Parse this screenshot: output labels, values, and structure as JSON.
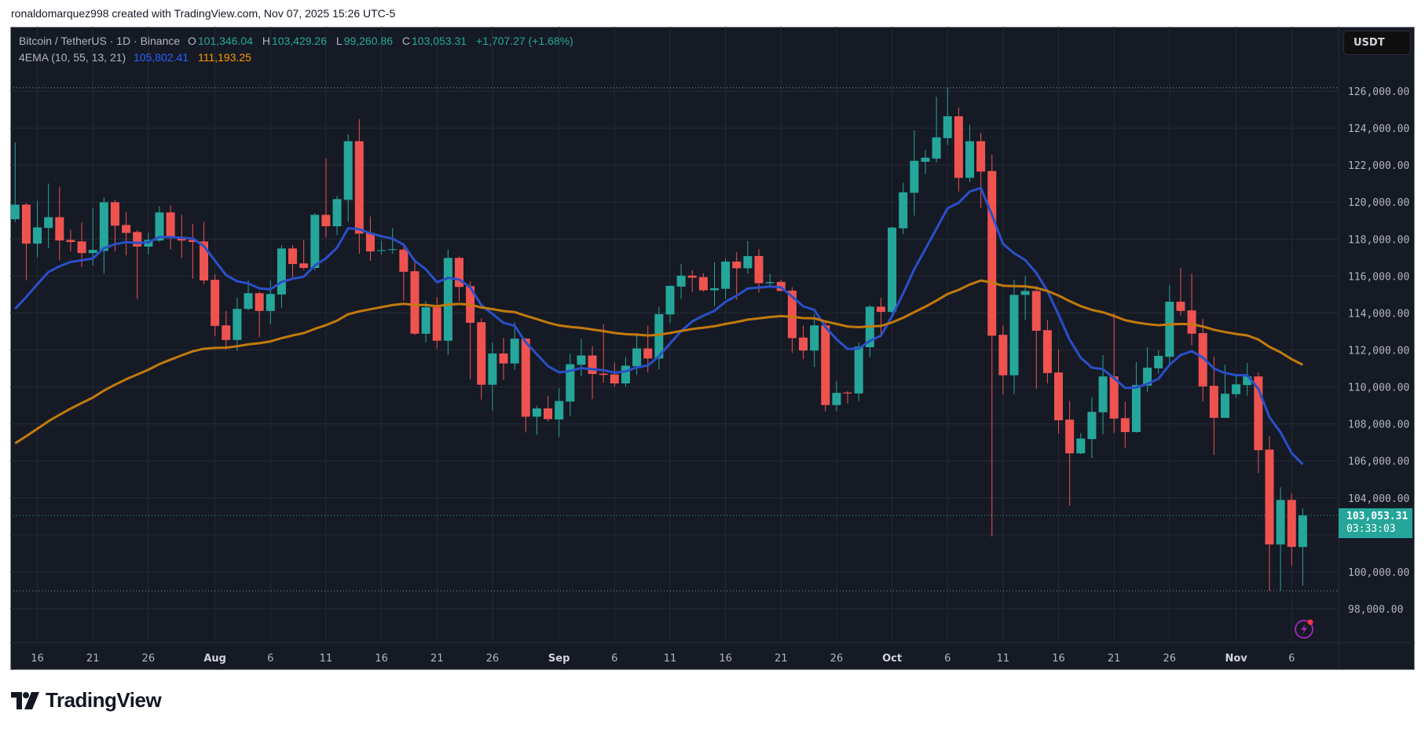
{
  "credit": "ronaldomarquez998 created with TradingView.com, Nov 07, 2025 15:26 UTC-5",
  "legend": {
    "symbol": "Bitcoin / TetherUS · 1D · Binance",
    "o_label": "O",
    "o_value": "101,346.04",
    "h_label": "H",
    "h_value": "103,429.26",
    "l_label": "L",
    "l_value": "99,260.86",
    "c_label": "C",
    "c_value": "103,053.31",
    "change": "+1,707.27 (+1.68%)",
    "indicator_name": "4EMA (10, 55, 13, 21)",
    "ema_fast_value": "105,802.41",
    "ema_slow_value": "111,193.25"
  },
  "currency_button": "USDT",
  "price_tag": {
    "price": "103,053.31",
    "countdown": "03:33:03"
  },
  "logo_text": "TradingView",
  "colors": {
    "background": "#161a25",
    "up": "#26a69a",
    "down": "#ef5350",
    "ema_fast": "#2a4fc9",
    "ema_slow": "#c27a0c",
    "grid": "#252a36",
    "axis_text": "#b2b5be"
  },
  "chart_data": {
    "type": "candlestick",
    "title": "Bitcoin / TetherUS · 1D · Binance",
    "ylim": [
      96500,
      127000
    ],
    "grid": true,
    "y_ticks": [
      "98,000.00",
      "100,000.00",
      "104,000.00",
      "106,000.00",
      "108,000.00",
      "110,000.00",
      "112,000.00",
      "114,000.00",
      "116,000.00",
      "118,000.00",
      "120,000.00",
      "122,000.00",
      "124,000.00",
      "126,000.00"
    ],
    "y_tick_values": [
      98000,
      100000,
      104000,
      106000,
      108000,
      110000,
      112000,
      114000,
      116000,
      118000,
      120000,
      122000,
      124000,
      126000
    ],
    "grid_values": [
      98000,
      100000,
      102000,
      104000,
      106000,
      108000,
      110000,
      112000,
      114000,
      116000,
      118000,
      120000,
      122000,
      124000,
      126000
    ],
    "x_ticks": [
      {
        "date": "2025-07-16",
        "label": "16",
        "month": false
      },
      {
        "date": "2025-07-21",
        "label": "21",
        "month": false
      },
      {
        "date": "2025-07-26",
        "label": "26",
        "month": false
      },
      {
        "date": "2025-08-01",
        "label": "Aug",
        "month": true
      },
      {
        "date": "2025-08-06",
        "label": "6",
        "month": false
      },
      {
        "date": "2025-08-11",
        "label": "11",
        "month": false
      },
      {
        "date": "2025-08-16",
        "label": "16",
        "month": false
      },
      {
        "date": "2025-08-21",
        "label": "21",
        "month": false
      },
      {
        "date": "2025-08-26",
        "label": "26",
        "month": false
      },
      {
        "date": "2025-09-01",
        "label": "Sep",
        "month": true
      },
      {
        "date": "2025-09-06",
        "label": "6",
        "month": false
      },
      {
        "date": "2025-09-11",
        "label": "11",
        "month": false
      },
      {
        "date": "2025-09-16",
        "label": "16",
        "month": false
      },
      {
        "date": "2025-09-21",
        "label": "21",
        "month": false
      },
      {
        "date": "2025-09-26",
        "label": "26",
        "month": false
      },
      {
        "date": "2025-10-01",
        "label": "Oct",
        "month": true
      },
      {
        "date": "2025-10-06",
        "label": "6",
        "month": false
      },
      {
        "date": "2025-10-11",
        "label": "11",
        "month": false
      },
      {
        "date": "2025-10-16",
        "label": "16",
        "month": false
      },
      {
        "date": "2025-10-21",
        "label": "21",
        "month": false
      },
      {
        "date": "2025-10-26",
        "label": "26",
        "month": false
      },
      {
        "date": "2025-11-01",
        "label": "Nov",
        "month": true
      },
      {
        "date": "2025-11-06",
        "label": "6",
        "month": false
      }
    ],
    "last_price": 103053.31,
    "columns": [
      "date",
      "open",
      "high",
      "low",
      "close"
    ],
    "candles": [
      [
        "2025-07-14",
        119070,
        123220,
        118930,
        119860
      ],
      [
        "2025-07-15",
        119860,
        119940,
        115760,
        117750
      ],
      [
        "2025-07-16",
        117750,
        120070,
        117030,
        118630
      ],
      [
        "2025-07-17",
        118600,
        121000,
        117500,
        119180
      ],
      [
        "2025-07-18",
        119180,
        120830,
        116860,
        117920
      ],
      [
        "2025-07-19",
        117950,
        118500,
        117330,
        117840
      ],
      [
        "2025-07-20",
        117870,
        118880,
        116480,
        117240
      ],
      [
        "2025-07-21",
        117240,
        119690,
        116570,
        117410
      ],
      [
        "2025-07-22",
        117360,
        120240,
        116130,
        119990
      ],
      [
        "2025-07-23",
        119990,
        120120,
        117330,
        118720
      ],
      [
        "2025-07-24",
        118760,
        119480,
        117120,
        118330
      ],
      [
        "2025-07-25",
        118380,
        118480,
        114750,
        117590
      ],
      [
        "2025-07-26",
        117590,
        118330,
        117160,
        117950
      ],
      [
        "2025-07-27",
        117920,
        119770,
        117840,
        119440
      ],
      [
        "2025-07-28",
        119440,
        119820,
        117440,
        118050
      ],
      [
        "2025-07-29",
        118080,
        119310,
        116980,
        117920
      ],
      [
        "2025-07-30",
        117950,
        118800,
        115850,
        117840
      ],
      [
        "2025-07-31",
        117870,
        118930,
        115550,
        115760
      ],
      [
        "2025-08-01",
        115790,
        116090,
        112750,
        113300
      ],
      [
        "2025-08-02",
        113330,
        114110,
        112030,
        112540
      ],
      [
        "2025-08-03",
        112540,
        114830,
        111950,
        114220
      ],
      [
        "2025-08-04",
        114220,
        115760,
        114150,
        115070
      ],
      [
        "2025-08-05",
        115070,
        115150,
        112710,
        114110
      ],
      [
        "2025-08-06",
        114110,
        115760,
        113390,
        115030
      ],
      [
        "2025-08-07",
        115000,
        117660,
        114290,
        117490
      ],
      [
        "2025-08-08",
        117490,
        117660,
        115920,
        116650
      ],
      [
        "2025-08-09",
        116680,
        117950,
        116340,
        116440
      ],
      [
        "2025-08-10",
        116440,
        119400,
        116300,
        119310
      ],
      [
        "2025-08-11",
        119310,
        122360,
        118090,
        118690
      ],
      [
        "2025-08-12",
        118690,
        120330,
        118220,
        120160
      ],
      [
        "2025-08-13",
        120120,
        123670,
        118940,
        123290
      ],
      [
        "2025-08-14",
        123290,
        124480,
        117200,
        118290
      ],
      [
        "2025-08-15",
        118330,
        119220,
        116820,
        117330
      ],
      [
        "2025-08-16",
        117370,
        117910,
        117160,
        117400
      ],
      [
        "2025-08-17",
        117410,
        118590,
        117200,
        117450
      ],
      [
        "2025-08-18",
        117430,
        117570,
        114660,
        116230
      ],
      [
        "2025-08-19",
        116260,
        116750,
        112800,
        112880
      ],
      [
        "2025-08-20",
        112880,
        114650,
        112410,
        114310
      ],
      [
        "2025-08-21",
        114310,
        114860,
        112070,
        112500
      ],
      [
        "2025-08-22",
        112500,
        117440,
        111730,
        116980
      ],
      [
        "2025-08-23",
        116980,
        117060,
        114630,
        115410
      ],
      [
        "2025-08-24",
        115450,
        115710,
        110420,
        113470
      ],
      [
        "2025-08-25",
        113500,
        113710,
        109320,
        110120
      ],
      [
        "2025-08-26",
        110120,
        112400,
        108730,
        111810
      ],
      [
        "2025-08-27",
        111810,
        112650,
        110380,
        111270
      ],
      [
        "2025-08-28",
        111270,
        113500,
        110930,
        112610
      ],
      [
        "2025-08-29",
        112610,
        112650,
        107540,
        108390
      ],
      [
        "2025-08-30",
        108390,
        108980,
        107410,
        108840
      ],
      [
        "2025-08-31",
        108840,
        109520,
        108130,
        108260
      ],
      [
        "2025-09-01",
        108240,
        109920,
        107300,
        109240
      ],
      [
        "2025-09-02",
        109210,
        111780,
        108410,
        111230
      ],
      [
        "2025-09-03",
        111200,
        112590,
        110570,
        111700
      ],
      [
        "2025-09-04",
        111700,
        112210,
        109340,
        110700
      ],
      [
        "2025-09-05",
        110720,
        113390,
        110230,
        110650
      ],
      [
        "2025-09-06",
        110680,
        111320,
        110020,
        110190
      ],
      [
        "2025-09-07",
        110190,
        111610,
        110020,
        111150
      ],
      [
        "2025-09-08",
        111120,
        112930,
        110650,
        112080
      ],
      [
        "2025-09-09",
        112080,
        113310,
        110780,
        111540
      ],
      [
        "2025-09-10",
        111540,
        114330,
        110950,
        113940
      ],
      [
        "2025-09-11",
        113920,
        115480,
        113450,
        115470
      ],
      [
        "2025-09-12",
        115430,
        116660,
        114760,
        116020
      ],
      [
        "2025-09-13",
        116020,
        116320,
        115150,
        115910
      ],
      [
        "2025-09-14",
        115940,
        116150,
        115150,
        115230
      ],
      [
        "2025-09-15",
        115230,
        116740,
        114380,
        115340
      ],
      [
        "2025-09-16",
        115310,
        116950,
        114760,
        116780
      ],
      [
        "2025-09-17",
        116780,
        117290,
        114720,
        116420
      ],
      [
        "2025-09-18",
        116420,
        117890,
        116120,
        117080
      ],
      [
        "2025-09-19",
        117080,
        117460,
        115100,
        115610
      ],
      [
        "2025-09-20",
        115610,
        116110,
        115440,
        115670
      ],
      [
        "2025-09-21",
        115680,
        115810,
        115190,
        115190
      ],
      [
        "2025-09-22",
        115210,
        115390,
        111840,
        112640
      ],
      [
        "2025-09-23",
        112670,
        113310,
        111500,
        111970
      ],
      [
        "2025-09-24",
        111970,
        113940,
        111080,
        113330
      ],
      [
        "2025-09-25",
        113330,
        113510,
        108680,
        109020
      ],
      [
        "2025-09-26",
        109020,
        110320,
        108680,
        109680
      ],
      [
        "2025-09-27",
        109700,
        109770,
        109100,
        109650
      ],
      [
        "2025-09-28",
        109650,
        112390,
        109230,
        112180
      ],
      [
        "2025-09-29",
        112150,
        114430,
        111600,
        114340
      ],
      [
        "2025-09-30",
        114340,
        114810,
        112690,
        114060
      ],
      [
        "2025-10-01",
        114060,
        118670,
        114000,
        118620
      ],
      [
        "2025-10-02",
        118580,
        121040,
        118280,
        120530
      ],
      [
        "2025-10-03",
        120500,
        123880,
        119270,
        122230
      ],
      [
        "2025-10-04",
        122180,
        122820,
        121510,
        122400
      ],
      [
        "2025-10-05",
        122350,
        125700,
        122140,
        123500
      ],
      [
        "2025-10-06",
        123460,
        126180,
        123080,
        124640
      ],
      [
        "2025-10-07",
        124640,
        125110,
        120570,
        121310
      ],
      [
        "2025-10-08",
        121310,
        124180,
        121080,
        123290
      ],
      [
        "2025-10-09",
        123290,
        123750,
        119660,
        121650
      ],
      [
        "2025-10-10",
        121680,
        122570,
        101910,
        112770
      ],
      [
        "2025-10-11",
        112820,
        113330,
        109610,
        110630
      ],
      [
        "2025-10-12",
        110630,
        115790,
        109610,
        114980
      ],
      [
        "2025-10-13",
        114980,
        116000,
        113620,
        115190
      ],
      [
        "2025-10-14",
        115190,
        115450,
        109910,
        113040
      ],
      [
        "2025-10-15",
        113070,
        113630,
        110190,
        110750
      ],
      [
        "2025-10-16",
        110780,
        112000,
        107480,
        108200
      ],
      [
        "2025-10-17",
        108230,
        109250,
        103580,
        106410
      ],
      [
        "2025-10-18",
        106410,
        107510,
        106370,
        107210
      ],
      [
        "2025-10-19",
        107180,
        109460,
        106160,
        108650
      ],
      [
        "2025-10-20",
        108630,
        111720,
        107440,
        110570
      ],
      [
        "2025-10-21",
        110570,
        114000,
        107520,
        108290
      ],
      [
        "2025-10-22",
        108310,
        109210,
        106710,
        107560
      ],
      [
        "2025-10-23",
        107560,
        111330,
        107520,
        110100
      ],
      [
        "2025-10-24",
        110070,
        112140,
        109730,
        111040
      ],
      [
        "2025-10-25",
        111010,
        111970,
        110710,
        111680
      ],
      [
        "2025-10-26",
        111630,
        115500,
        111290,
        114610
      ],
      [
        "2025-10-27",
        114610,
        116440,
        113860,
        114110
      ],
      [
        "2025-10-28",
        114140,
        116140,
        112240,
        112880
      ],
      [
        "2025-10-29",
        112910,
        113670,
        109220,
        110030
      ],
      [
        "2025-10-30",
        110060,
        111630,
        106330,
        108330
      ],
      [
        "2025-10-31",
        108330,
        111210,
        108330,
        109630
      ],
      [
        "2025-11-01",
        109610,
        110610,
        109430,
        110140
      ],
      [
        "2025-11-02",
        110100,
        111290,
        109520,
        110570
      ],
      [
        "2025-11-03",
        110570,
        110780,
        105350,
        106580
      ],
      [
        "2025-11-04",
        106610,
        107340,
        98970,
        101480
      ],
      [
        "2025-11-05",
        101480,
        104570,
        98970,
        103890
      ],
      [
        "2025-11-06",
        103890,
        104230,
        100330,
        101350
      ],
      [
        "2025-11-07",
        101346.04,
        103429.26,
        99260.86,
        103053.31
      ]
    ],
    "indicators": [
      {
        "type": "EMA",
        "length": 10,
        "color": "#2a4fc9",
        "first_value": 114230,
        "last_value": 105802.41
      },
      {
        "type": "EMA",
        "length": 55,
        "color": "#c27a0c",
        "first_value": 106950,
        "last_value": 111193.25
      }
    ]
  }
}
